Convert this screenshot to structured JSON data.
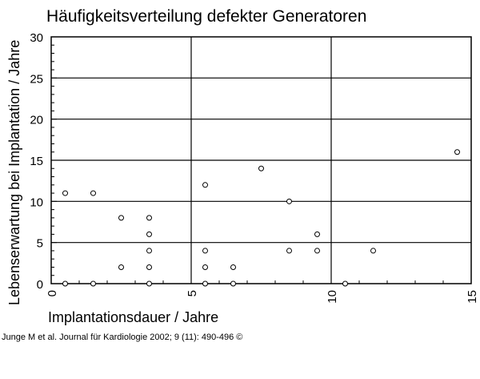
{
  "chart_data": {
    "type": "scatter",
    "title": "Häufigkeitsverteilung defekter Generatoren",
    "xlabel": "Implantationsdauer / Jahre",
    "ylabel": "Lebenserwartung bei Implantation / Jahre",
    "xlim": [
      0,
      15
    ],
    "ylim": [
      0,
      30
    ],
    "x_ticks": [
      "0",
      "5",
      "10",
      "15"
    ],
    "y_ticks": [
      "0",
      "5",
      "10",
      "15",
      "20",
      "25",
      "30"
    ],
    "grid": true,
    "marker": "open-circle",
    "points": [
      {
        "x": 0.5,
        "y": 0
      },
      {
        "x": 0.5,
        "y": 11
      },
      {
        "x": 1.5,
        "y": 11
      },
      {
        "x": 1.5,
        "y": 0
      },
      {
        "x": 2.5,
        "y": 2
      },
      {
        "x": 2.5,
        "y": 8
      },
      {
        "x": 3.5,
        "y": 0
      },
      {
        "x": 3.5,
        "y": 2
      },
      {
        "x": 3.5,
        "y": 4
      },
      {
        "x": 3.5,
        "y": 6
      },
      {
        "x": 3.5,
        "y": 8
      },
      {
        "x": 5.5,
        "y": 0
      },
      {
        "x": 5.5,
        "y": 2
      },
      {
        "x": 5.5,
        "y": 4
      },
      {
        "x": 5.5,
        "y": 12
      },
      {
        "x": 6.5,
        "y": 0
      },
      {
        "x": 6.5,
        "y": 2
      },
      {
        "x": 7.5,
        "y": 14
      },
      {
        "x": 8.5,
        "y": 4
      },
      {
        "x": 8.5,
        "y": 10
      },
      {
        "x": 9.5,
        "y": 4
      },
      {
        "x": 9.5,
        "y": 6
      },
      {
        "x": 10.5,
        "y": 0
      },
      {
        "x": 11.5,
        "y": 4
      },
      {
        "x": 14.5,
        "y": 16
      }
    ]
  },
  "citation": "Junge M et al. Journal für Kardiologie 2002; 9 (11): 490-496 ©",
  "colors": {
    "background": "#ffffff",
    "ink": "#000000"
  }
}
